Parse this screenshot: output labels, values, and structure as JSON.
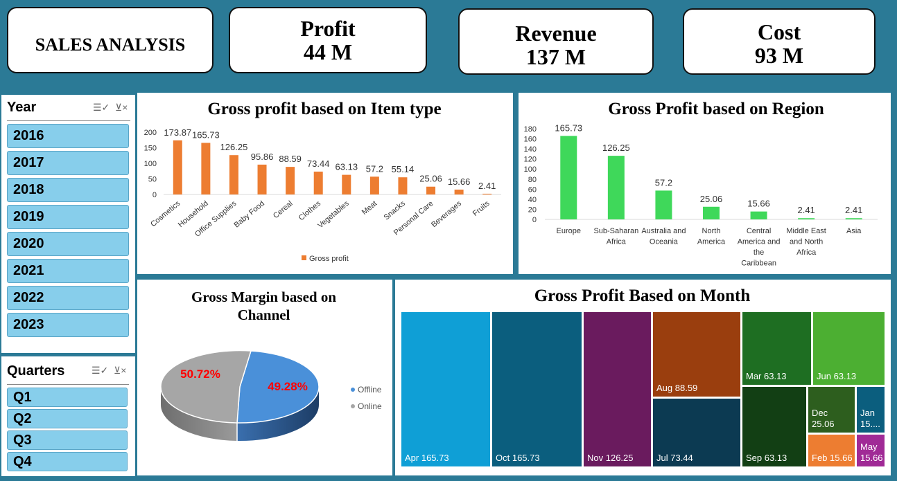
{
  "header": {
    "title": "SALES ANALYSIS",
    "kpis": [
      {
        "label": "Profit",
        "value": "44 M"
      },
      {
        "label": "Revenue",
        "value": "137 M"
      },
      {
        "label": "Cost",
        "value": "93 M"
      }
    ]
  },
  "year_slicer": {
    "title": "Year",
    "items": [
      "2016",
      "2017",
      "2018",
      "2019",
      "2020",
      "2021",
      "2022",
      "2023"
    ],
    "icons": [
      "multi-select-icon",
      "clear-filter-icon"
    ]
  },
  "quarter_slicer": {
    "title": "Quarters",
    "items": [
      "Q1",
      "Q2",
      "Q3",
      "Q4"
    ],
    "icons": [
      "multi-select-icon",
      "clear-filter-icon"
    ]
  },
  "chart_data": [
    {
      "type": "bar",
      "title": "Gross profit based on Item type",
      "categories": [
        "Cosmetics",
        "Household",
        "Office Supplies",
        "Baby Food",
        "Cereal",
        "Clothes",
        "Vegetables",
        "Meat",
        "Snacks",
        "Personal Care",
        "Beverages",
        "Fruits"
      ],
      "values": [
        173.87,
        165.73,
        126.25,
        95.86,
        88.59,
        73.44,
        63.13,
        57.2,
        55.14,
        25.06,
        15.66,
        2.41
      ],
      "value_labels": [
        "173.87",
        "165.73",
        "126.25",
        "95.86",
        "88.59",
        "73.44",
        "63.13",
        "57.2",
        "55.14",
        "25.06",
        "15.66",
        "2.41"
      ],
      "yticks": [
        "0",
        "50",
        "100",
        "150",
        "200"
      ],
      "ylim": [
        0,
        200
      ],
      "legend": "Gross profit",
      "legend_position": "bottom",
      "color": "#ed7d31"
    },
    {
      "type": "bar",
      "title": "Gross Profit based on Region",
      "categories": [
        [
          "Europe"
        ],
        [
          "Sub-Saharan",
          "Africa"
        ],
        [
          "Australia and",
          "Oceania"
        ],
        [
          "North",
          "America"
        ],
        [
          "Central",
          "America and",
          "the",
          "Caribbean"
        ],
        [
          "Middle East",
          "and North",
          "Africa"
        ],
        [
          "Asia"
        ]
      ],
      "values": [
        165.73,
        126.25,
        57.2,
        25.06,
        15.66,
        2.41,
        2.41
      ],
      "value_labels": [
        "165.73",
        "126.25",
        "57.2",
        "25.06",
        "15.66",
        "2.41",
        "2.41"
      ],
      "yticks": [
        "0",
        "20",
        "40",
        "60",
        "80",
        "100",
        "120",
        "140",
        "160",
        "180"
      ],
      "ylim": [
        0,
        180
      ],
      "color": "#3fd85a"
    },
    {
      "type": "pie",
      "title": "Gross Margin based on Channel",
      "slices": [
        {
          "name": "Offline",
          "value": 49.28,
          "label": "49.28%",
          "color": "#4a90d9"
        },
        {
          "name": "Online",
          "value": 50.72,
          "label": "50.72%",
          "color": "#a6a6a6"
        }
      ],
      "label_color": "#ff0000",
      "legend_position": "right"
    },
    {
      "type": "treemap",
      "title": "Gross Profit Based on Month",
      "tiles": [
        {
          "label": "Apr 165.73",
          "value": 165.73,
          "color": "#0f9fd6"
        },
        {
          "label": "Oct 165.73",
          "value": 165.73,
          "color": "#0b5e7e"
        },
        {
          "label": "Nov 126.25",
          "value": 126.25,
          "color": "#6a1b5e"
        },
        {
          "label": "Aug 88.59",
          "value": 88.59,
          "color": "#9a3e0e"
        },
        {
          "label": "Jul 73.44",
          "value": 73.44,
          "color": "#0c3a52"
        },
        {
          "label": "Mar 63.13",
          "value": 63.13,
          "color": "#1e6e22"
        },
        {
          "label": "Jun 63.13",
          "value": 63.13,
          "color": "#4caf32"
        },
        {
          "label": "Sep 63.13",
          "value": 63.13,
          "color": "#123f14"
        },
        {
          "label": "Dec 25.06",
          "value": 25.06,
          "color": "#2d5e1e"
        },
        {
          "label": "Jan 15....",
          "value": 15.66,
          "color": "#0b5e7e"
        },
        {
          "label": "Feb 15.66",
          "value": 15.66,
          "color": "#ed7d31"
        },
        {
          "label": "May 15.66",
          "value": 15.66,
          "color": "#a02a96"
        }
      ]
    }
  ]
}
